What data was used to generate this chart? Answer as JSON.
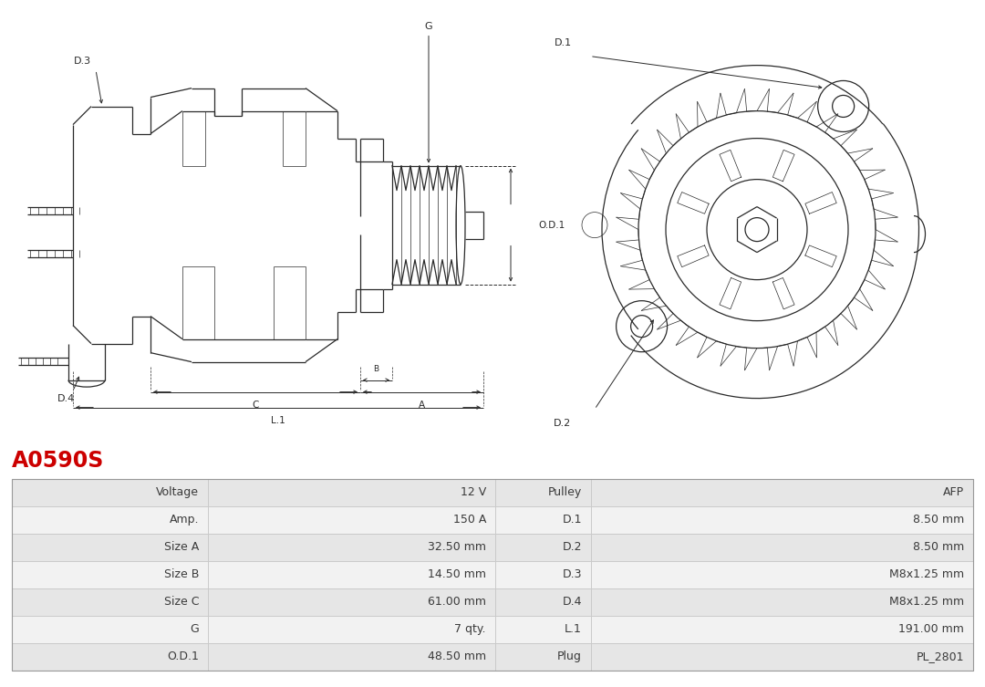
{
  "title": "A0590S",
  "title_color": "#cc0000",
  "bg_color": "#ffffff",
  "table_rows": [
    [
      "Voltage",
      "12 V",
      "Pulley",
      "AFP"
    ],
    [
      "Amp.",
      "150 A",
      "D.1",
      "8.50 mm"
    ],
    [
      "Size A",
      "32.50 mm",
      "D.2",
      "8.50 mm"
    ],
    [
      "Size B",
      "14.50 mm",
      "D.3",
      "M8x1.25 mm"
    ],
    [
      "Size C",
      "61.00 mm",
      "D.4",
      "M8x1.25 mm"
    ],
    [
      "G",
      "7 qty.",
      "L.1",
      "191.00 mm"
    ],
    [
      "O.D.1",
      "48.50 mm",
      "Plug",
      "PL_2801"
    ]
  ],
  "row_bg_odd": "#e6e6e6",
  "row_bg_even": "#f2f2f2",
  "border_color": "#c8c8c8",
  "drawing_line_color": "#2a2a2a",
  "label_color": "#2a2a2a",
  "fig_width": 10.8,
  "fig_height": 7.53
}
